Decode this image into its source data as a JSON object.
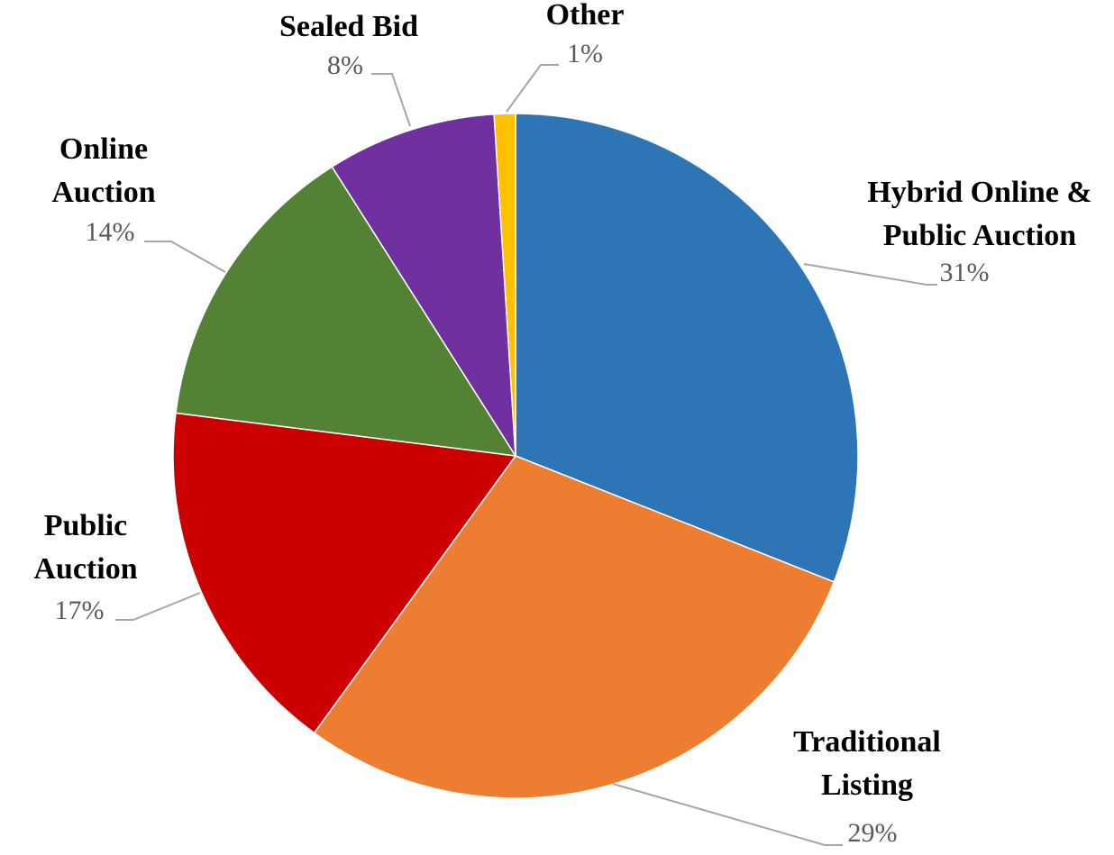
{
  "chart_data": {
    "type": "pie",
    "categories": [
      "Hybrid Online & Public Auction",
      "Traditional Listing",
      "Public Auction",
      "Online Auction",
      "Sealed Bid",
      "Other"
    ],
    "values": [
      31,
      29,
      17,
      14,
      8,
      1
    ],
    "value_labels": [
      "31%",
      "29%",
      "17%",
      "14%",
      "8%",
      "1%"
    ],
    "colors": [
      "#2e75b6",
      "#ed7d31",
      "#cc0000",
      "#548235",
      "#7030a0",
      "#ffc000"
    ]
  }
}
